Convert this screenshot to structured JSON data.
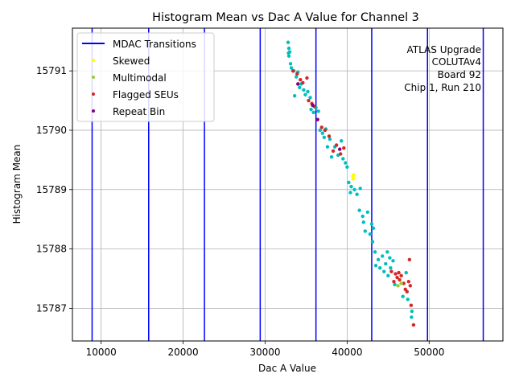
{
  "chart_data": {
    "type": "scatter",
    "title": "Histogram Mean vs Dac A Value for Channel 3",
    "xlabel": "Dac A Value",
    "ylabel": "Histogram Mean",
    "xlim": [
      6500,
      59000
    ],
    "ylim": [
      15786.45,
      15791.72
    ],
    "x_ticks": [
      10000,
      20000,
      30000,
      40000,
      50000
    ],
    "y_ticks": [
      15787,
      15788,
      15789,
      15790,
      15791
    ],
    "grid": true,
    "legend_position": "top-left",
    "annotation": [
      "ATLAS Upgrade",
      "COLUTAv4",
      "Board 92",
      "Chip 1, Run 210"
    ],
    "mdac_transitions": {
      "name": "MDAC Transitions",
      "color": "#0000ff",
      "x": [
        8900,
        15800,
        22600,
        29400,
        36200,
        43000,
        49800,
        56600
      ]
    },
    "series": [
      {
        "name": "Skewed",
        "color": "#ffff00",
        "marker": "circle",
        "in_legend": true,
        "points": [
          [
            40700,
            15789.22
          ],
          [
            40800,
            15789.25
          ],
          [
            40750,
            15789.18
          ]
        ]
      },
      {
        "name": "Multimodal",
        "color": "#9acd32",
        "marker": "circle",
        "in_legend": true,
        "points": [
          [
            46200,
            15787.38
          ],
          [
            46600,
            15787.42
          ]
        ]
      },
      {
        "name": "Flagged SEUs",
        "color": "#d62728",
        "marker": "circle",
        "in_legend": true,
        "points": [
          [
            33400,
            15791.0
          ],
          [
            33900,
            15790.95
          ],
          [
            34300,
            15790.85
          ],
          [
            34600,
            15790.8
          ],
          [
            35100,
            15790.88
          ],
          [
            35300,
            15790.5
          ],
          [
            35700,
            15790.45
          ],
          [
            36000,
            15790.4
          ],
          [
            36900,
            15790.05
          ],
          [
            37300,
            15790.0
          ],
          [
            37800,
            15789.9
          ],
          [
            38300,
            15789.65
          ],
          [
            38700,
            15789.75
          ],
          [
            39200,
            15789.6
          ],
          [
            39600,
            15789.7
          ],
          [
            45400,
            15787.62
          ],
          [
            45700,
            15787.45
          ],
          [
            45900,
            15787.58
          ],
          [
            46100,
            15787.52
          ],
          [
            46300,
            15787.6
          ],
          [
            46400,
            15787.48
          ],
          [
            46600,
            15787.55
          ],
          [
            46900,
            15787.42
          ],
          [
            47100,
            15787.32
          ],
          [
            47300,
            15787.28
          ],
          [
            47500,
            15787.45
          ],
          [
            47600,
            15787.82
          ],
          [
            47700,
            15787.38
          ],
          [
            47800,
            15787.05
          ],
          [
            48100,
            15786.72
          ]
        ]
      },
      {
        "name": "Repeat Bin",
        "color": "#800080",
        "marker": "circle",
        "in_legend": true,
        "points": [
          [
            34000,
            15790.78
          ],
          [
            35800,
            15790.42
          ],
          [
            36400,
            15790.18
          ],
          [
            39100,
            15789.68
          ]
        ]
      },
      {
        "name": "Normal",
        "color": "#00bfbf",
        "marker": "circle",
        "in_legend": false,
        "points": [
          [
            32800,
            15791.48
          ],
          [
            32900,
            15791.38
          ],
          [
            32850,
            15791.3
          ],
          [
            32900,
            15791.25
          ],
          [
            33000,
            15791.32
          ],
          [
            33100,
            15791.12
          ],
          [
            33200,
            15791.05
          ],
          [
            33500,
            15791.0
          ],
          [
            33600,
            15790.58
          ],
          [
            33800,
            15790.9
          ],
          [
            34000,
            15790.98
          ],
          [
            34200,
            15790.72
          ],
          [
            34400,
            15790.78
          ],
          [
            34700,
            15790.68
          ],
          [
            34900,
            15790.6
          ],
          [
            35200,
            15790.65
          ],
          [
            35500,
            15790.55
          ],
          [
            35600,
            15790.35
          ],
          [
            35900,
            15790.3
          ],
          [
            36200,
            15790.38
          ],
          [
            36500,
            15790.32
          ],
          [
            36700,
            15790.0
          ],
          [
            37000,
            15789.95
          ],
          [
            37200,
            15789.88
          ],
          [
            37400,
            15790.02
          ],
          [
            37600,
            15789.72
          ],
          [
            37900,
            15789.85
          ],
          [
            38100,
            15789.55
          ],
          [
            38500,
            15789.72
          ],
          [
            38900,
            15789.58
          ],
          [
            39300,
            15789.82
          ],
          [
            39500,
            15789.52
          ],
          [
            39800,
            15789.45
          ],
          [
            40000,
            15789.38
          ],
          [
            40200,
            15789.12
          ],
          [
            40400,
            15788.95
          ],
          [
            40500,
            15789.05
          ],
          [
            40900,
            15789.0
          ],
          [
            41200,
            15788.92
          ],
          [
            41500,
            15788.65
          ],
          [
            41600,
            15789.02
          ],
          [
            41900,
            15788.55
          ],
          [
            42000,
            15788.45
          ],
          [
            42200,
            15788.3
          ],
          [
            42500,
            15788.62
          ],
          [
            42800,
            15788.25
          ],
          [
            43000,
            15788.42
          ],
          [
            43200,
            15788.35
          ],
          [
            43100,
            15788.12
          ],
          [
            43400,
            15787.95
          ],
          [
            43500,
            15787.72
          ],
          [
            43800,
            15787.82
          ],
          [
            44000,
            15787.68
          ],
          [
            44300,
            15787.88
          ],
          [
            44500,
            15787.62
          ],
          [
            44700,
            15787.75
          ],
          [
            44900,
            15787.95
          ],
          [
            45000,
            15787.55
          ],
          [
            45200,
            15787.85
          ],
          [
            45300,
            15787.68
          ],
          [
            45600,
            15787.8
          ],
          [
            45800,
            15787.4
          ],
          [
            46800,
            15787.2
          ],
          [
            47400,
            15787.15
          ],
          [
            47200,
            15787.6
          ],
          [
            47900,
            15786.95
          ],
          [
            47850,
            15786.85
          ]
        ]
      }
    ]
  }
}
